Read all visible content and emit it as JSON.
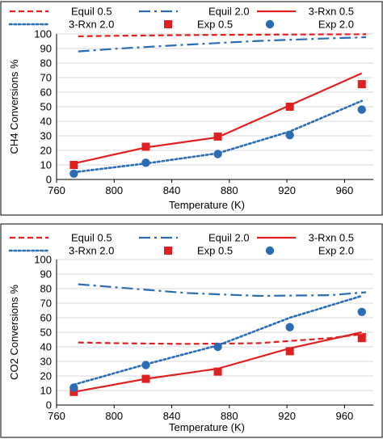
{
  "chart_data": [
    {
      "type": "line",
      "ylabel": "CH4 Conversions %",
      "xlabel": "Temperature (K)",
      "xlim": [
        760,
        980
      ],
      "ylim": [
        0,
        100
      ],
      "xticks": [
        760,
        800,
        840,
        880,
        920,
        960
      ],
      "yticks": [
        0,
        10,
        20,
        30,
        40,
        50,
        60,
        70,
        80,
        90,
        100
      ],
      "legend_position": "top",
      "series": [
        {
          "name": "Equil 0.5",
          "kind": "line",
          "style": "dash",
          "color": "#e02020",
          "x": [
            775,
            800,
            850,
            900,
            950,
            975
          ],
          "y": [
            98.4,
            98.7,
            99.2,
            99.5,
            99.7,
            99.8
          ]
        },
        {
          "name": "Equil 2.0",
          "kind": "line",
          "style": "dashdot",
          "color": "#2a6db5",
          "x": [
            775,
            800,
            850,
            900,
            950,
            975
          ],
          "y": [
            88,
            89.8,
            92.6,
            95.2,
            97,
            97.8
          ]
        },
        {
          "name": "3-Rxn 0.5",
          "kind": "line",
          "style": "solid",
          "color": "#e02020",
          "x": [
            772,
            822,
            872,
            922,
            972
          ],
          "y": [
            11,
            22,
            29,
            51,
            73
          ]
        },
        {
          "name": "3-Rxn 2.0",
          "kind": "line",
          "style": "dot",
          "color": "#2a6db5",
          "x": [
            772,
            822,
            872,
            922,
            972
          ],
          "y": [
            5,
            11,
            18,
            33,
            54
          ]
        },
        {
          "name": "Exp 0.5",
          "kind": "marker",
          "marker": "square",
          "color": "#e02020",
          "x": [
            772,
            822,
            872,
            922,
            972
          ],
          "y": [
            10,
            22.5,
            29.5,
            50,
            65.5
          ]
        },
        {
          "name": "Exp 2.0",
          "kind": "marker",
          "marker": "circle",
          "color": "#2a6db5",
          "x": [
            772,
            822,
            872,
            922,
            972
          ],
          "y": [
            4,
            11.5,
            17.5,
            30.5,
            48
          ]
        }
      ]
    },
    {
      "type": "line",
      "ylabel": "CO2 Conversions %",
      "xlabel": "Temperature (K)",
      "xlim": [
        760,
        980
      ],
      "ylim": [
        0,
        100
      ],
      "xticks": [
        760,
        800,
        840,
        880,
        920,
        960
      ],
      "yticks": [
        0,
        10,
        20,
        30,
        40,
        50,
        60,
        70,
        80,
        90,
        100
      ],
      "legend_position": "top",
      "series": [
        {
          "name": "Equil 0.5",
          "kind": "line",
          "style": "dash",
          "color": "#e02020",
          "x": [
            775,
            800,
            850,
            900,
            950,
            975
          ],
          "y": [
            43,
            42.5,
            42,
            42.5,
            46,
            49
          ]
        },
        {
          "name": "Equil 2.0",
          "kind": "line",
          "style": "dashdot",
          "color": "#2a6db5",
          "x": [
            775,
            800,
            850,
            900,
            950,
            975
          ],
          "y": [
            83,
            81,
            77,
            75,
            75.5,
            77.5
          ]
        },
        {
          "name": "3-Rxn 0.5",
          "kind": "line",
          "style": "solid",
          "color": "#e02020",
          "x": [
            772,
            822,
            872,
            922,
            972
          ],
          "y": [
            9,
            18,
            25,
            39,
            50
          ]
        },
        {
          "name": "3-Rxn 2.0",
          "kind": "line",
          "style": "dot",
          "color": "#2a6db5",
          "x": [
            772,
            822,
            872,
            922,
            972
          ],
          "y": [
            14,
            28,
            41,
            60,
            75
          ]
        },
        {
          "name": "Exp 0.5",
          "kind": "marker",
          "marker": "square",
          "color": "#e02020",
          "x": [
            772,
            822,
            872,
            922,
            972
          ],
          "y": [
            9,
            18,
            23,
            37,
            46
          ]
        },
        {
          "name": "Exp 2.0",
          "kind": "marker",
          "marker": "circle",
          "color": "#2a6db5",
          "x": [
            772,
            822,
            872,
            922,
            972
          ],
          "y": [
            12,
            27.5,
            40,
            53.5,
            64
          ]
        }
      ]
    }
  ]
}
